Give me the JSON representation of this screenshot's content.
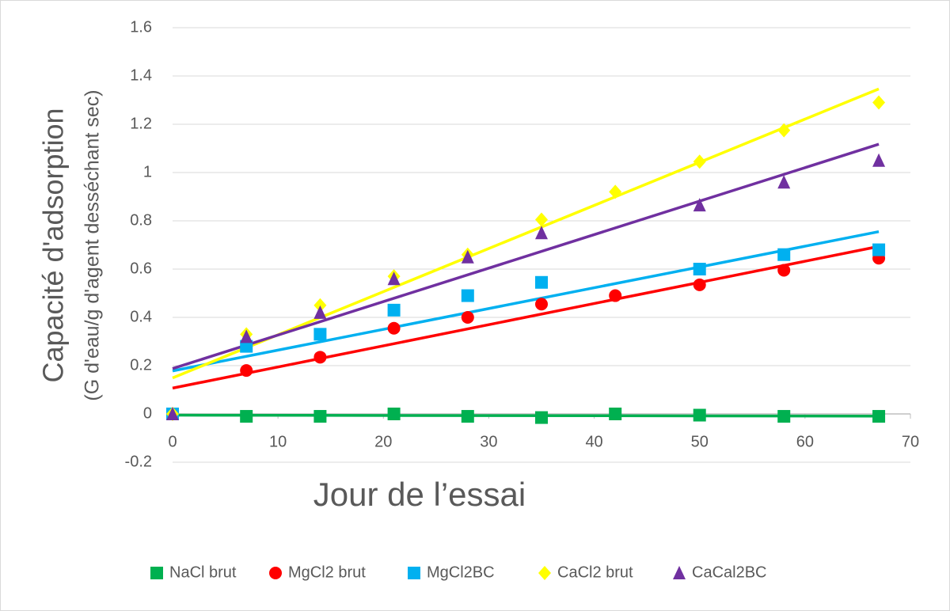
{
  "chart_data": {
    "type": "scatter",
    "ylabel": "Capacité d'adsorption",
    "ylabel_sub": "(G d'eau/g d'agent desséchant sec)",
    "xlabel": "Jour de l’essai",
    "x": [
      0,
      7,
      14,
      21,
      28,
      35,
      42,
      50,
      58,
      67
    ],
    "series": [
      {
        "name": "NaCl brut",
        "color": "#00b050",
        "marker": "square",
        "values": [
          0,
          -0.01,
          -0.01,
          0,
          -0.01,
          -0.015,
          0,
          -0.005,
          -0.01,
          -0.01
        ]
      },
      {
        "name": "MgCl2 brut",
        "color": "#ff0000",
        "marker": "circle",
        "values": [
          0,
          0.18,
          0.235,
          0.355,
          0.4,
          0.455,
          0.49,
          0.535,
          0.595,
          0.645
        ]
      },
      {
        "name": "MgCl2BC",
        "color": "#00b0f0",
        "marker": "square",
        "values": [
          0,
          0.28,
          0.33,
          0.43,
          0.49,
          0.545,
          null,
          0.6,
          0.66,
          0.68
        ]
      },
      {
        "name": "CaCl2 brut",
        "color": "#ffff00",
        "marker": "diamond",
        "values": [
          0,
          0.33,
          0.45,
          0.57,
          0.66,
          0.805,
          0.92,
          1.045,
          1.175,
          1.29
        ]
      },
      {
        "name": "CaCal2BC",
        "color": "#7030a0",
        "marker": "triangle",
        "values": [
          0,
          0.32,
          0.42,
          0.56,
          0.65,
          0.75,
          null,
          0.865,
          0.96,
          1.05
        ]
      }
    ],
    "trendline": "linear",
    "xlim": [
      0,
      70
    ],
    "xticks": [
      0,
      10,
      20,
      30,
      40,
      50,
      60,
      70
    ],
    "ylim": [
      -0.2,
      1.6
    ],
    "yticks": [
      -0.2,
      0,
      0.2,
      0.4,
      0.6,
      0.8,
      1,
      1.2,
      1.4,
      1.6
    ],
    "grid": true,
    "legend": "bottom"
  }
}
